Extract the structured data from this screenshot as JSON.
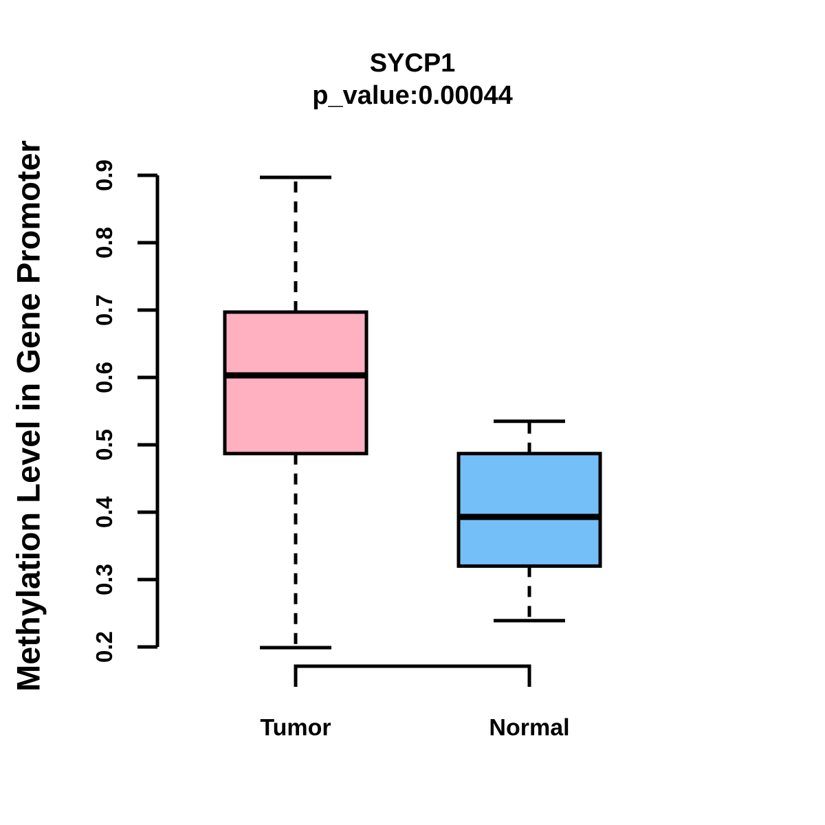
{
  "figure": {
    "background": "#FFFFFF",
    "line_color": "#000000"
  },
  "chart_data": {
    "type": "box",
    "title": "SYCP1",
    "subtitle": "p_value:0.00044",
    "p_value": "0.00044",
    "ylabel": "Methylation Level in Gene Promoter",
    "xlabel": "",
    "categories": [
      "Tumor",
      "Normal"
    ],
    "y_axis": {
      "min": 0.2,
      "max": 0.9,
      "ticks": [
        0.2,
        0.3,
        0.4,
        0.5,
        0.6,
        0.7,
        0.8,
        0.9
      ],
      "tick_labels": [
        "0.2",
        "0.3",
        "0.4",
        "0.5",
        "0.6",
        "0.7",
        "0.8",
        "0.9"
      ]
    },
    "grid": false,
    "legend": "none",
    "series": [
      {
        "name": "Tumor",
        "color": "#FFB0C1",
        "stats": {
          "whisker_low": 0.199,
          "q1": 0.487,
          "median": 0.603,
          "q3": 0.697,
          "whisker_high": 0.897
        }
      },
      {
        "name": "Normal",
        "color": "#74BFF7",
        "stats": {
          "whisker_low": 0.239,
          "q1": 0.32,
          "median": 0.393,
          "q3": 0.487,
          "whisker_high": 0.535
        }
      }
    ]
  }
}
